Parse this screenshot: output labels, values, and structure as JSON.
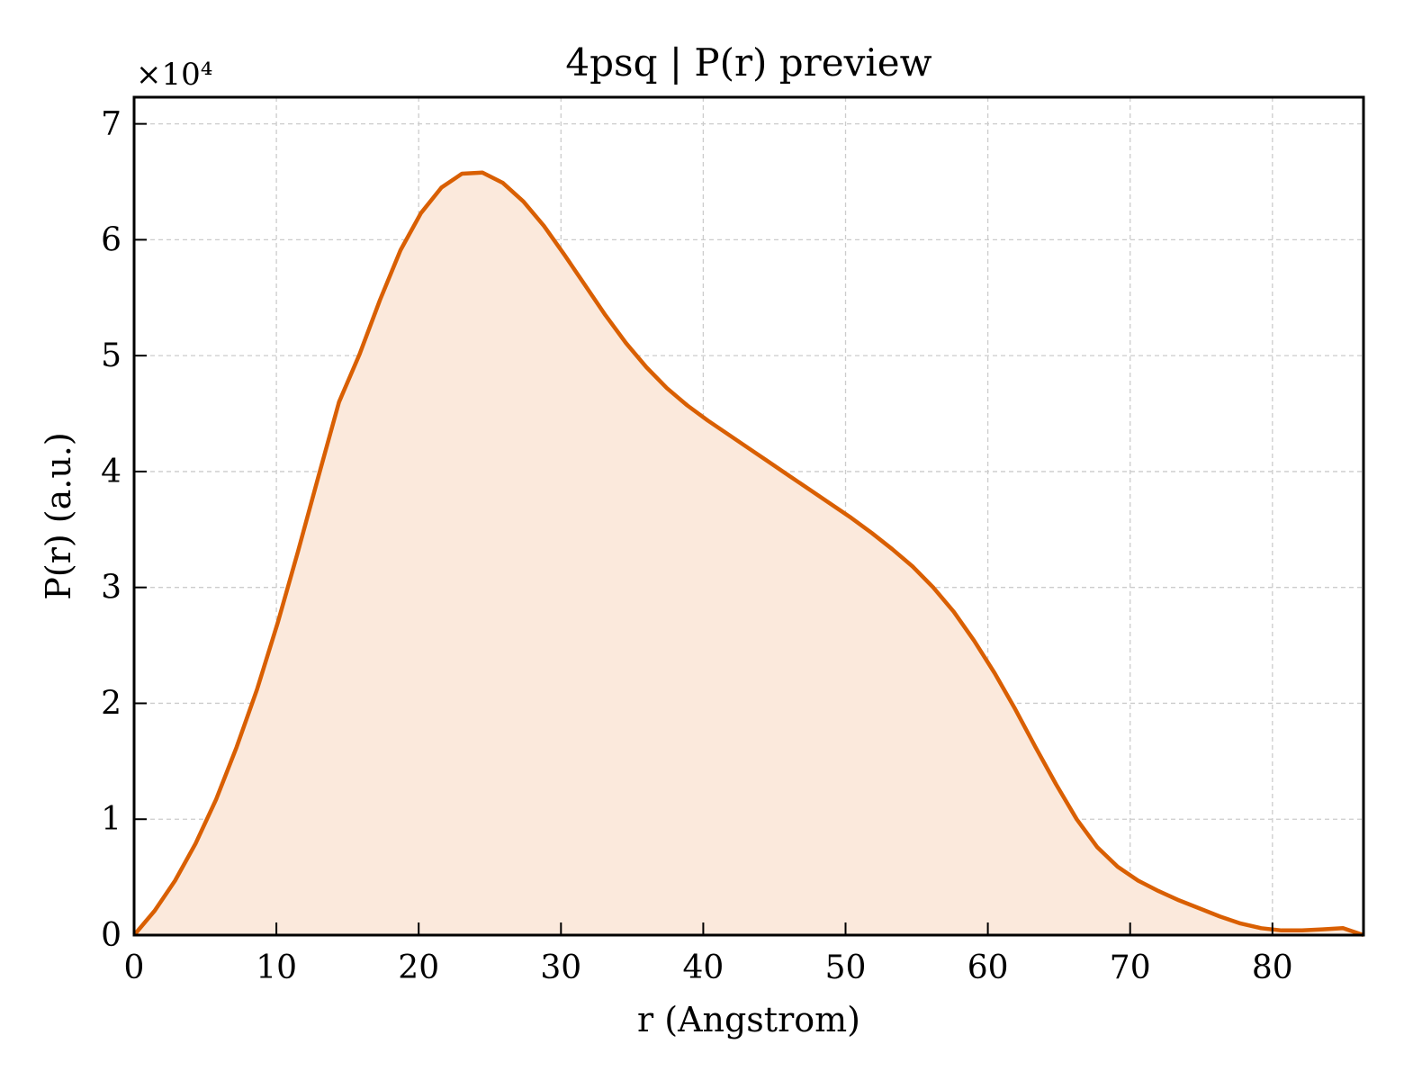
{
  "chart_data": {
    "type": "area",
    "title": "4psq | P(r) preview",
    "xlabel": "r (Angstrom)",
    "ylabel": "P(r) (a.u.)",
    "y_multiplier_label": "×10⁴",
    "xlim": [
      0,
      86.4
    ],
    "ylim": [
      0,
      7.23
    ],
    "y_scale_factor": 10000,
    "grid": true,
    "legend": "none",
    "x_ticks": [
      0,
      10,
      20,
      30,
      40,
      50,
      60,
      70,
      80
    ],
    "y_ticks": [
      0,
      1,
      2,
      3,
      4,
      5,
      6,
      7
    ],
    "x_tick_labels": [
      "0",
      "10",
      "20",
      "30",
      "40",
      "50",
      "60",
      "70",
      "80"
    ],
    "y_tick_labels": [
      "0",
      "1",
      "2",
      "3",
      "4",
      "5",
      "6",
      "7"
    ],
    "colors": {
      "line": "#d95f02",
      "fill": "#fbe9dc"
    },
    "series": [
      {
        "x": [
          0,
          1.44,
          2.88,
          4.32,
          5.76,
          7.2,
          8.64,
          10.08,
          11.52,
          12.96,
          14.4,
          15.84,
          17.28,
          18.72,
          20.16,
          21.6,
          23.04,
          24.48,
          25.92,
          27.36,
          28.8,
          30.24,
          31.68,
          33.12,
          34.56,
          36.0,
          37.44,
          38.88,
          40.32,
          41.76,
          43.2,
          44.64,
          46.08,
          47.52,
          48.96,
          50.4,
          51.84,
          53.28,
          54.72,
          56.16,
          57.6,
          59.04,
          60.48,
          61.92,
          63.36,
          64.8,
          66.24,
          67.68,
          69.12,
          70.56,
          72.0,
          73.44,
          74.88,
          76.32,
          77.76,
          79.2,
          80.64,
          82.08,
          83.52,
          84.96,
          86.4
        ],
        "y": [
          0,
          0.21,
          0.47,
          0.79,
          1.17,
          1.62,
          2.12,
          2.69,
          3.31,
          3.96,
          4.6,
          5.01,
          5.48,
          5.91,
          6.23,
          6.45,
          6.57,
          6.58,
          6.49,
          6.33,
          6.12,
          5.87,
          5.61,
          5.35,
          5.11,
          4.9,
          4.72,
          4.57,
          4.44,
          4.32,
          4.2,
          4.08,
          3.96,
          3.84,
          3.72,
          3.6,
          3.47,
          3.33,
          3.18,
          3.0,
          2.79,
          2.54,
          2.26,
          1.95,
          1.62,
          1.3,
          1.0,
          0.76,
          0.59,
          0.47,
          0.38,
          0.3,
          0.23,
          0.16,
          0.1,
          0.06,
          0.04,
          0.04,
          0.05,
          0.06,
          0.0
        ]
      }
    ]
  }
}
